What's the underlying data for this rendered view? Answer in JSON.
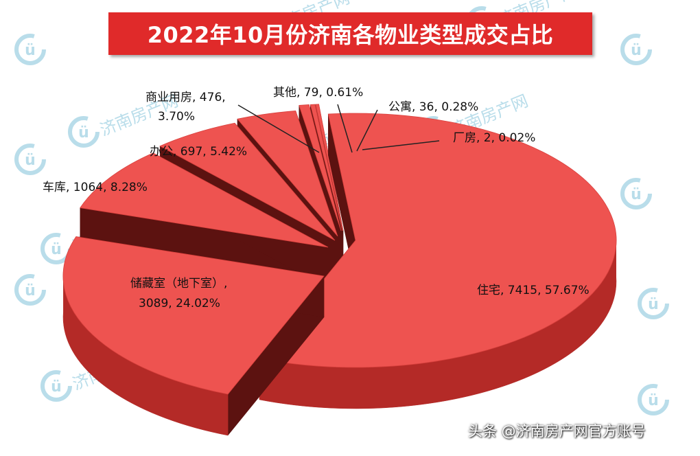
{
  "title": "2022年10月份济南各物业类型成交占比",
  "footer": "头条 @济南房产网官方账号",
  "watermark": {
    "brand_text": "济南房产网",
    "logo_letter": "ü"
  },
  "colors": {
    "title_bg": "#e02a2a",
    "slice_top": "#ee5350",
    "slice_side": "#b42a27",
    "slice_dark": "#5c1210",
    "leader": "#222222",
    "watermark": "#b9ddea"
  },
  "chart_data": {
    "type": "pie",
    "title": "2022年10月份济南各物业类型成交占比",
    "series": [
      {
        "name": "住宅",
        "value": 7415,
        "percent": 57.67,
        "label_line1": "住宅, 7415, 57.67%"
      },
      {
        "name": "储藏室（地下室）",
        "value": 3089,
        "percent": 24.02,
        "label_line1": "储藏室（地下室）,",
        "label_line2": "3089, 24.02%"
      },
      {
        "name": "车库",
        "value": 1064,
        "percent": 8.28,
        "label_line1": "车库, 1064, 8.28%"
      },
      {
        "name": "办公",
        "value": 697,
        "percent": 5.42,
        "label_line1": "办公, 697, 5.42%"
      },
      {
        "name": "商业用房",
        "value": 476,
        "percent": 3.7,
        "label_line1": "商业用房, 476,",
        "label_line2": "3.70%"
      },
      {
        "name": "其他",
        "value": 79,
        "percent": 0.61,
        "label_line1": "其他, 79, 0.61%"
      },
      {
        "name": "公寓",
        "value": 36,
        "percent": 0.28,
        "label_line1": "公寓, 36, 0.28%"
      },
      {
        "name": "厂房",
        "value": 2,
        "percent": 0.02,
        "label_line1": "厂房, 2, 0.02%"
      }
    ],
    "legend": "none"
  }
}
